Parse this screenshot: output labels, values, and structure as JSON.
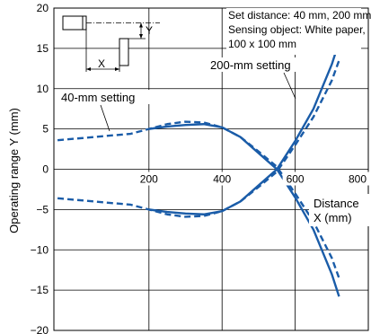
{
  "chart_data": {
    "type": "line",
    "title": "",
    "xlabel": "Distance X (mm)",
    "xlabel_line1": "Distance",
    "xlabel_line2": "X (mm)",
    "ylabel": "Operating range Y (mm)",
    "xlim": [
      -60,
      800
    ],
    "ylim": [
      -20,
      20
    ],
    "x_ticks": [
      200,
      400,
      600,
      800
    ],
    "y_ticks": [
      20,
      15,
      10,
      5,
      0,
      -5,
      -10,
      -15,
      -20
    ],
    "grid": true,
    "conditions": {
      "line1": "Set distance: 40 mm, 200 mm",
      "line2": "Sensing object: White paper,",
      "line3": "100 x 100 mm"
    },
    "diagram_labels": {
      "x": "X",
      "y": "Y"
    },
    "series": [
      {
        "name": "40-mm setting",
        "style": "dashed",
        "color": "#1a5ca8",
        "x": [
          -50,
          50,
          150,
          200,
          250,
          300,
          350,
          400,
          450,
          500,
          550,
          600,
          650,
          700,
          720
        ],
        "y": [
          3.6,
          4.0,
          4.4,
          5.0,
          5.6,
          5.9,
          5.8,
          5.2,
          4.0,
          2.2,
          0.3,
          -3.0,
          -6.5,
          -11,
          -13.5
        ]
      },
      {
        "name": "200-mm setting",
        "style": "solid",
        "color": "#1a5ca8",
        "x": [
          200,
          250,
          300,
          350,
          400,
          450,
          500,
          550,
          600,
          650,
          700,
          720
        ],
        "y": [
          5.0,
          5.3,
          5.5,
          5.6,
          5.2,
          4.0,
          2.0,
          0,
          -3.5,
          -7.5,
          -13,
          -15.8
        ]
      }
    ]
  }
}
